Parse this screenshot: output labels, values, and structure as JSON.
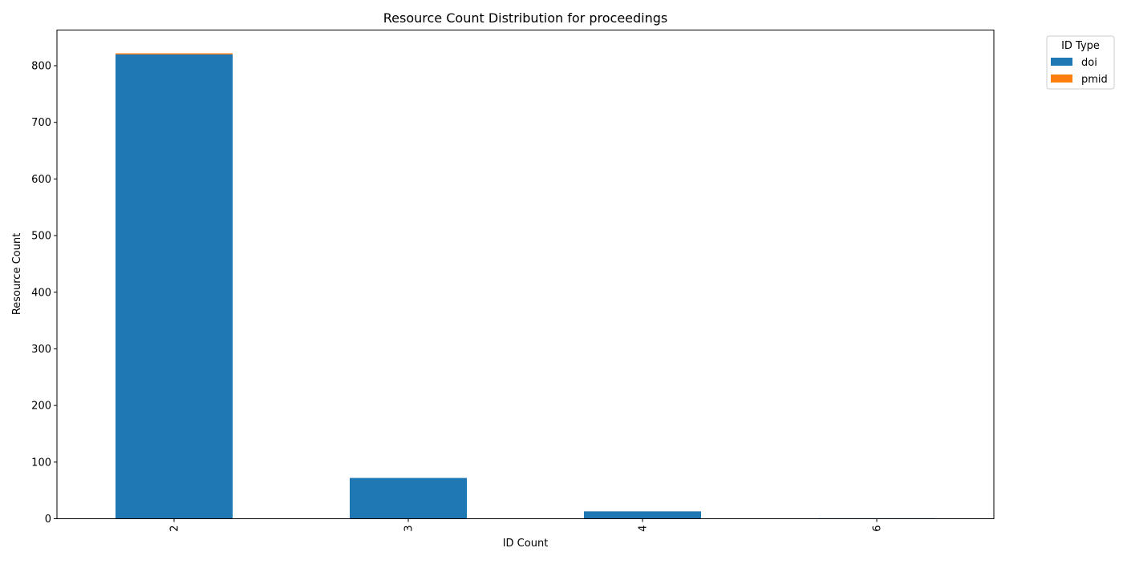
{
  "chart_data": {
    "type": "bar",
    "stacked": true,
    "title": "Resource Count Distribution for proceedings",
    "xlabel": "ID Count",
    "ylabel": "Resource Count",
    "categories": [
      "2",
      "3",
      "4",
      "6"
    ],
    "series": [
      {
        "name": "doi",
        "color": "#1f77b4",
        "values": [
          820,
          72,
          13,
          1
        ]
      },
      {
        "name": "pmid",
        "color": "#ff7f0e",
        "values": [
          2,
          0,
          0,
          0
        ]
      }
    ],
    "ylim": [
      0,
      863
    ],
    "yticks": [
      0,
      100,
      200,
      300,
      400,
      500,
      600,
      700,
      800
    ],
    "legend": {
      "title": "ID Type",
      "placement": "outside-top-right"
    },
    "grid": false
  }
}
